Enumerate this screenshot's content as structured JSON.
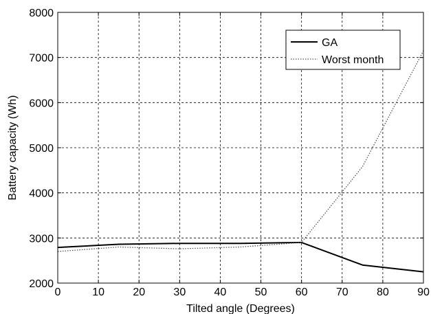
{
  "chart_data": {
    "type": "line",
    "xlabel": "Tilted angle (Degrees)",
    "ylabel": "Battery capacity (Wh)",
    "xlim": [
      0,
      90
    ],
    "ylim": [
      2000,
      8000
    ],
    "xticks": [
      0,
      10,
      20,
      30,
      40,
      50,
      60,
      70,
      80,
      90
    ],
    "yticks": [
      2000,
      3000,
      4000,
      5000,
      6000,
      7000,
      8000
    ],
    "grid": true,
    "legend_position": "top-right",
    "series": [
      {
        "name": "GA",
        "style": "solid",
        "color": "#000000",
        "x": [
          0,
          15,
          30,
          45,
          60,
          75,
          90
        ],
        "y": [
          2790,
          2860,
          2880,
          2880,
          2900,
          2400,
          2250
        ]
      },
      {
        "name": "Worst month",
        "style": "dotted",
        "color": "#555555",
        "x": [
          0,
          15,
          30,
          45,
          60,
          75,
          90
        ],
        "y": [
          2700,
          2800,
          2760,
          2800,
          2900,
          4580,
          7150
        ]
      }
    ]
  }
}
